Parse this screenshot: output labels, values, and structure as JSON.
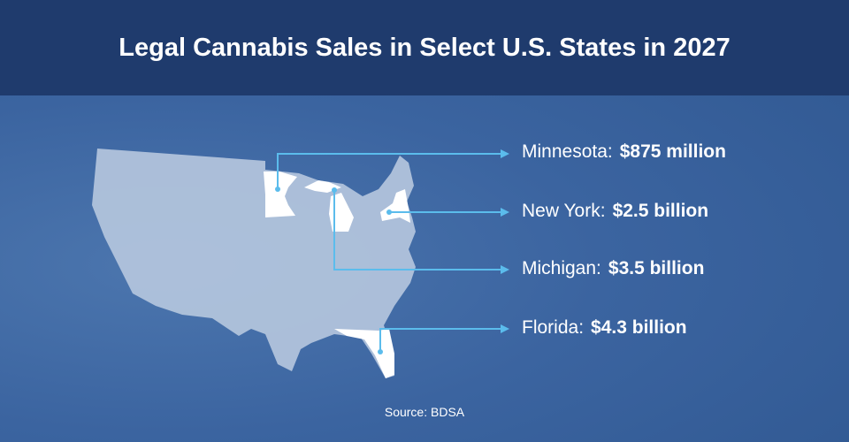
{
  "title": "Legal Cannabis Sales in Select U.S. States in 2027",
  "states": [
    {
      "name": "Minnesota:",
      "value": "$875 million"
    },
    {
      "name": "New York:",
      "value": "$2.5 billion"
    },
    {
      "name": "Michigan:",
      "value": "$3.5 billion"
    },
    {
      "name": "Florida:",
      "value": "$4.3 billion"
    }
  ],
  "source": "Source: BDSA",
  "colors": {
    "header": "#1f3b6d",
    "background": "#3b66a2",
    "map": "#b4c6dd",
    "highlight": "#ffffff",
    "leader_line": "#5bbcec"
  }
}
